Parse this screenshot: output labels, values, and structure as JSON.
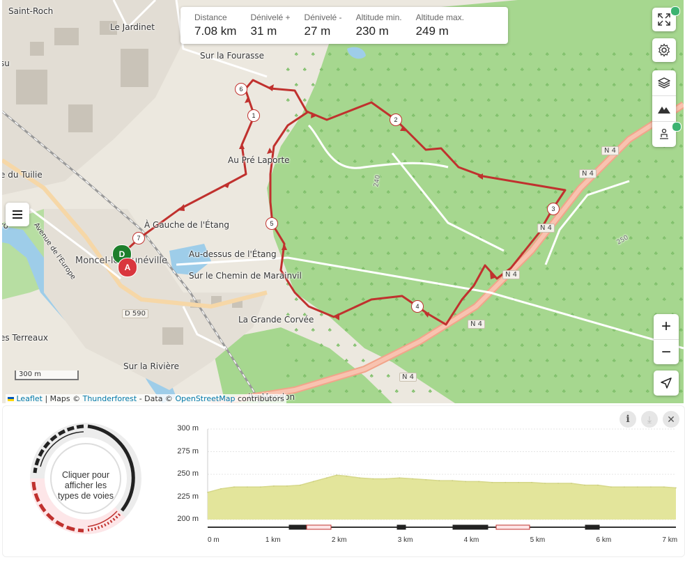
{
  "stats": [
    {
      "label": "Distance",
      "value": "7.08 km"
    },
    {
      "label": "Dénivelé +",
      "value": "31 m"
    },
    {
      "label": "Dénivelé -",
      "value": "27 m"
    },
    {
      "label": "Altitude min.",
      "value": "230 m"
    },
    {
      "label": "Altitude max.",
      "value": "249 m"
    }
  ],
  "places": {
    "saint_roch": "Saint-Roch",
    "le_jardinet": "Le Jardinet",
    "sur_la_fourasse": "Sur la Fourasse",
    "au_pre_laporte": "Au Pré Laporte",
    "du_tuilie": "e du Tuilie",
    "a_gauche": "À Gauche de l'Étang",
    "moncel": "Moncel-lès-Lunéville",
    "au_dessus": "Au-dessus de l'Étang",
    "sur_le_chemin": "Sur le Chemin de Marainvil",
    "la_grande_corvee": "La Grande Corvée",
    "les_terreaux": "es Terreaux",
    "sur_la_riviere": "Sur la Rivière",
    "mondon": "ite Mondon",
    "avenue": "Avenue de l'Europe",
    "r_edge": "ro",
    "u_edge": "su"
  },
  "roads": {
    "n4": "N 4",
    "d590": "D 590",
    "c240": "240",
    "c250": "250"
  },
  "markers": {
    "start": "D",
    "end": "A",
    "waypoints": [
      "1",
      "2",
      "3",
      "4",
      "5",
      "6",
      "7"
    ]
  },
  "scale_label": "300 m",
  "attribution": {
    "leaflet": "Leaflet",
    "maps": " | Maps © ",
    "thunderforest": "Thunderforest",
    "data": " - Data © ",
    "osm": "OpenStreetMap",
    "contributors": " contributors"
  },
  "controls": {
    "zoom_in": "+",
    "zoom_out": "−"
  },
  "icons": {
    "fullscreen": "fullscreen-icon",
    "settings": "gear-icon",
    "layers": "layers-icon",
    "mountain": "mountain-icon",
    "hiker": "hiker-icon",
    "locate": "locate-icon",
    "menu": "menu-icon",
    "info": "info-icon",
    "download": "download-icon",
    "close": "close-icon"
  },
  "colors": {
    "route": "#c0312e",
    "forest": "#a6d78f",
    "profile_fill": "#e3e59b",
    "start": "#1e7f2c",
    "end": "#d9363e"
  },
  "way_types_text": "Cliquer pour afficher les types de voies",
  "info_glyph": "i",
  "download_glyph": "⤓",
  "close_glyph": "✕",
  "chart_data": {
    "type": "area",
    "ylabel_ticks": [
      "300 m",
      "275 m",
      "250 m",
      "225 m",
      "200 m"
    ],
    "xlabel_ticks": [
      "0 m",
      "1 km",
      "2 km",
      "3 km",
      "4 km",
      "5 km",
      "6 km",
      "7 km"
    ],
    "ylim": [
      200,
      300
    ],
    "xlim": [
      0,
      7.08
    ],
    "x": [
      0,
      0.2,
      0.4,
      0.6,
      0.8,
      1.0,
      1.2,
      1.4,
      1.6,
      1.8,
      1.95,
      2.1,
      2.3,
      2.5,
      2.7,
      2.9,
      3.1,
      3.3,
      3.5,
      3.7,
      3.9,
      4.1,
      4.3,
      4.5,
      4.7,
      4.9,
      5.1,
      5.3,
      5.5,
      5.7,
      5.9,
      6.1,
      6.3,
      6.5,
      6.7,
      6.9,
      7.08
    ],
    "values": [
      230,
      234,
      236,
      236,
      236,
      237,
      237,
      238,
      242,
      246,
      249,
      248,
      246,
      245,
      245,
      246,
      245,
      244,
      243,
      243,
      242,
      242,
      241,
      241,
      241,
      241,
      240,
      240,
      240,
      238,
      238,
      236,
      236,
      236,
      236,
      236,
      235
    ]
  }
}
